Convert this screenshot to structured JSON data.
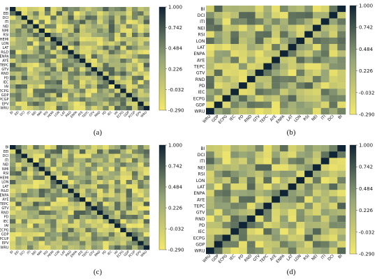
{
  "figure": {
    "panels": [
      {
        "id": "a",
        "caption": "(a)"
      },
      {
        "id": "b",
        "caption": "(b)"
      },
      {
        "id": "c",
        "caption": "(c)"
      },
      {
        "id": "d",
        "caption": "(d)"
      }
    ]
  },
  "chart_data": [
    {
      "type": "heatmap",
      "panel": "(a)",
      "rows": [
        "BI",
        "EEI",
        "DCI",
        "ITI",
        "NEI",
        "NMI",
        "RSI",
        "HEMI",
        "LON",
        "LAT",
        "R&D",
        "ENPA",
        "AYE",
        "TEPC",
        "GTV",
        "RND",
        "PD",
        "IEC",
        "IAI",
        "ECPG",
        "GDP",
        "PCGP",
        "EPV",
        "WRU"
      ],
      "columns": [
        "BI",
        "EEI",
        "DCI",
        "ITI",
        "NEI",
        "NMI",
        "RSI",
        "HEMI",
        "LON",
        "LAT",
        "R&D",
        "ENPA",
        "AYE",
        "TEPC",
        "GTV",
        "RND",
        "PD",
        "IEC",
        "IAI",
        "ECPG",
        "GDP",
        "PCGP",
        "EPV",
        "WRU"
      ],
      "color_scale": {
        "ticks": [
          "1.000",
          "0.742",
          "0.484",
          "0.226",
          "-0.032",
          "-0.290"
        ],
        "min": -0.29,
        "max": 1.0,
        "low_color": "#f4e96a",
        "high_color": "#0f2434"
      },
      "note": "24x24 lower-triangle-dominant correlation matrix; individual cell values are not legible at this resolution"
    },
    {
      "type": "heatmap",
      "panel": "(b)",
      "rows": [
        "BI",
        "DCI",
        "ITI",
        "NEI",
        "RSI",
        "LON",
        "LAT",
        "ENPA",
        "AYE",
        "TEPC",
        "GTV",
        "RND",
        "PD",
        "IEC",
        "ECPG",
        "GDP",
        "WRU"
      ],
      "columns": [
        "WRU",
        "GDP",
        "ECPG",
        "IEC",
        "PD",
        "RND",
        "GTV",
        "TEPC",
        "AYE",
        "ENPA",
        "LAT",
        "LON",
        "RSI",
        "NEI",
        "ITI",
        "DCI",
        "BI"
      ],
      "color_scale": {
        "ticks": [
          "1.000",
          "0.742",
          "0.484",
          "0.226",
          "-0.032",
          "-0.290"
        ],
        "min": -0.29,
        "max": 1.0,
        "low_color": "#f4e96a",
        "high_color": "#0f2434"
      },
      "note": "17x17 correlation matrix with diagonal running top-right to bottom-left; individual cell values are not legible at this resolution"
    },
    {
      "type": "heatmap",
      "panel": "(c)",
      "rows": [
        "BI",
        "EEI",
        "DCI",
        "ITI",
        "NEI",
        "NMI",
        "RSI",
        "HEMI",
        "LON",
        "LAT",
        "R&D",
        "ENPA",
        "AYE",
        "TEPC",
        "GTV",
        "RND",
        "PD",
        "IEC",
        "IAI",
        "ECPG",
        "GDP",
        "PCUP",
        "EPV",
        "WRU"
      ],
      "columns": [
        "BI",
        "EEI",
        "DCI",
        "ITI",
        "NEI",
        "NMI",
        "RSI",
        "HEMI",
        "LON",
        "LAT",
        "R&D",
        "ENPA",
        "AYE",
        "TEPC",
        "GTV",
        "RND",
        "PD",
        "IEC",
        "IAI",
        "ECPG",
        "GDP",
        "PCUP",
        "EPV",
        "WRU"
      ],
      "color_scale": {
        "ticks": [
          "1.000",
          "0.742",
          "0.484",
          "0.226",
          "-0.032",
          "-0.290"
        ],
        "min": -0.29,
        "max": 1.0,
        "low_color": "#f4e96a",
        "high_color": "#0f2434"
      },
      "note": "24x24 correlation matrix; individual cell values are not legible at this resolution"
    },
    {
      "type": "heatmap",
      "panel": "(d)",
      "rows": [
        "BI",
        "DCI",
        "ITI",
        "NEI",
        "RSI",
        "LON",
        "LAT",
        "ENPA",
        "AYE",
        "TEPC",
        "GTV",
        "RND",
        "PD",
        "IEC",
        "ECPG",
        "GDP",
        "WRU"
      ],
      "columns": [
        "WRU",
        "GDP",
        "ECPG",
        "IEC",
        "PD",
        "RND",
        "GTV",
        "TEPC",
        "AYE",
        "ENPA",
        "LAT",
        "LON",
        "RSI",
        "NEI",
        "ITI",
        "DCI",
        "BI"
      ],
      "color_scale": {
        "ticks": [
          "1.000",
          "0.742",
          "0.484",
          "0.226",
          "-0.032",
          "-0.290"
        ],
        "min": -0.29,
        "max": 1.0,
        "low_color": "#f4e96a",
        "high_color": "#0f2434"
      },
      "note": "17x17 correlation matrix with diagonal running top-right to bottom-left; individual cell values are not legible at this resolution"
    }
  ]
}
